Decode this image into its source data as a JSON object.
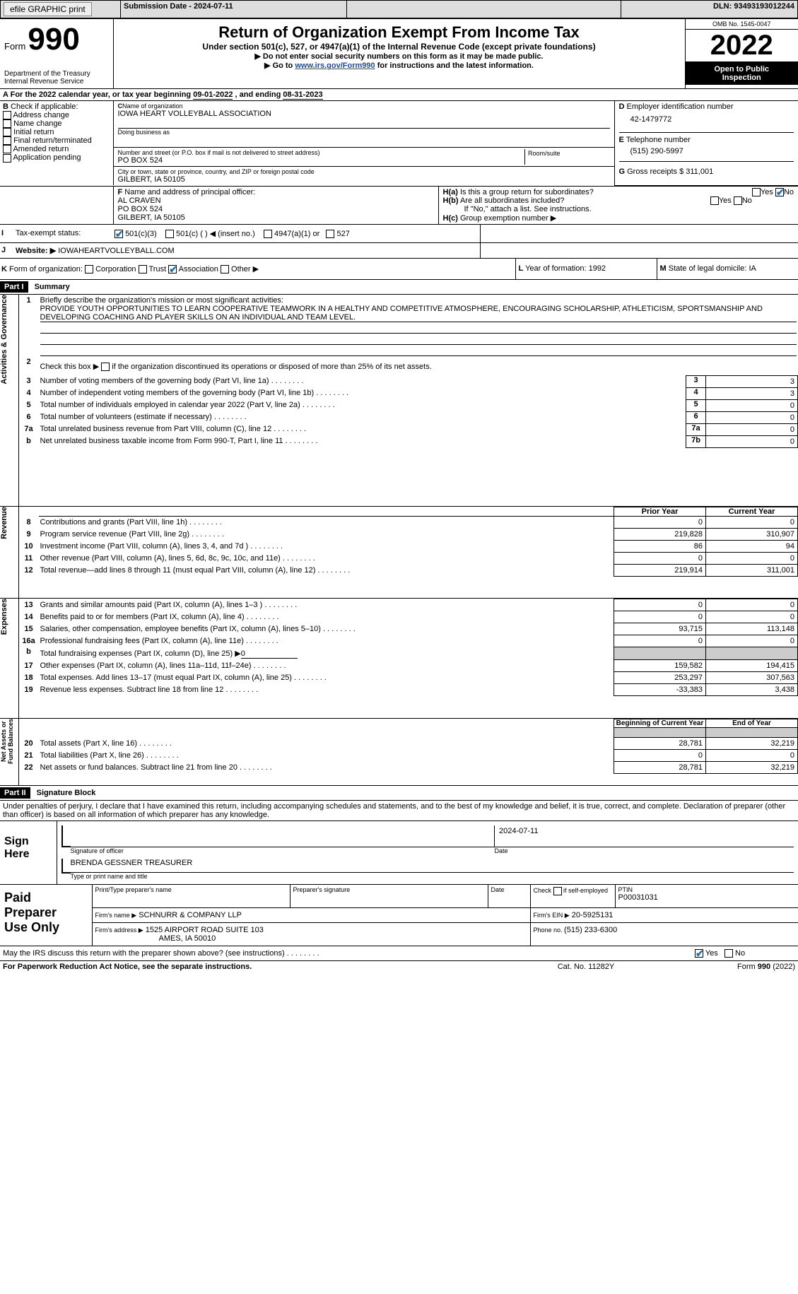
{
  "top": {
    "efile": "efile GRAPHIC print",
    "subdate_label": "Submission Date - 2024-07-11",
    "dln": "DLN: 93493193012244"
  },
  "hdr": {
    "form": "990",
    "formword": "Form",
    "title": "Return of Organization Exempt From Income Tax",
    "subtitle": "Under section 501(c), 527, or 4947(a)(1) of the Internal Revenue Code (except private foundations)",
    "note1": "Do not enter social security numbers on this form as it may be made public.",
    "note2_a": "Go to ",
    "note2_link": "www.irs.gov/Form990",
    "note2_b": " for instructions and the latest information.",
    "dept": "Department of the Treasury\nInternal Revenue Service",
    "omb": "OMB No. 1545-0047",
    "year": "2022",
    "insp": "Open to Public\nInspection"
  },
  "A": {
    "year_line_a": "For the 2022 calendar year, or tax year beginning ",
    "beg": "09-01-2022",
    "mid": " , and ending ",
    "end": "08-31-2023"
  },
  "B": {
    "hdr": " Check if applicable:",
    "addr": "Address change",
    "name": "Name change",
    "init": "Initial return",
    "final": "Final return/terminated",
    "amend": "Amended return",
    "app": "Application pending"
  },
  "C": {
    "lbl": "Name of organization",
    "org": "IOWA HEART VOLLEYBALL ASSOCIATION",
    "dba_lbl": "Doing business as",
    "street_lbl": "Number and street (or P.O. box if mail is not delivered to street address)",
    "street": "PO BOX 524",
    "room_lbl": "Room/suite",
    "city_lbl": "City or town, state or province, country, and ZIP or foreign postal code",
    "city": "GILBERT, IA  50105"
  },
  "D": {
    "lbl": " Employer identification number",
    "val": "42-1479772"
  },
  "E": {
    "lbl": " Telephone number",
    "val": "(515) 290-5997"
  },
  "G": {
    "lbl": " Gross receipts $ ",
    "val": "311,001"
  },
  "F": {
    "lbl": " Name and address of principal officer:",
    "name": "AL CRAVEN",
    "addr1": "PO BOX 524",
    "addr2": "GILBERT, IA  50105"
  },
  "H": {
    "a": " Is this a group return for subordinates?",
    "b": " Are all subordinates included?",
    "bnote": "If \"No,\" attach a list. See instructions.",
    "c": " Group exemption number ▶",
    "yes": "Yes",
    "no": "No"
  },
  "I": {
    "lbl": "Tax-exempt status:",
    "c1": "501(c)(3)",
    "c2": "501(c) (  ) ◀ (insert no.)",
    "c3": "4947(a)(1) or",
    "c4": "527"
  },
  "J": {
    "lbl": "Website: ▶",
    "val": " IOWAHEARTVOLLEYBALL.COM"
  },
  "K": {
    "lbl": " Form of organization:",
    "corp": "Corporation",
    "trust": "Trust",
    "assoc": "Association",
    "other": "Other ▶"
  },
  "L": {
    "lbl": " Year of formation: ",
    "val": "1992"
  },
  "M": {
    "lbl": " State of legal domicile: ",
    "val": "IA"
  },
  "p1": {
    "bar": "Part I",
    "title": "Summary",
    "side_act": "Activities & Governance",
    "side_rev": "Revenue",
    "side_exp": "Expenses",
    "side_net": "Net Assets or\nFund Balances",
    "l1_lbl": "Briefly describe the organization's mission or most significant activities:",
    "l1_txt": "PROVIDE YOUTH OPPORTUNITIES TO LEARN COOPERATIVE TEAMWORK IN A HEALTHY AND COMPETITIVE ATMOSPHERE, ENCOURAGING SCHOLARSHIP, ATHLETICISM, SPORTSMANSHIP AND DEVELOPING COACHING AND PLAYER SKILLS ON AN INDIVIDUAL AND TEAM LEVEL.",
    "l2": "Check this box ▶        if the organization discontinued its operations or disposed of more than 25% of its net assets.",
    "rows_a": [
      {
        "n": "3",
        "t": "Number of voting members of the governing body (Part VI, line 1a)",
        "box": "3",
        "v": "3"
      },
      {
        "n": "4",
        "t": "Number of independent voting members of the governing body (Part VI, line 1b)",
        "box": "4",
        "v": "3"
      },
      {
        "n": "5",
        "t": "Total number of individuals employed in calendar year 2022 (Part V, line 2a)",
        "box": "5",
        "v": "0"
      },
      {
        "n": "6",
        "t": "Total number of volunteers (estimate if necessary)",
        "box": "6",
        "v": "0"
      },
      {
        "n": "7a",
        "t": "Total unrelated business revenue from Part VIII, column (C), line 12",
        "box": "7a",
        "v": "0"
      },
      {
        "n": "b",
        "t": "Net unrelated business taxable income from Form 990-T, Part I, line 11",
        "box": "7b",
        "v": "0"
      }
    ],
    "pcy_hdr_p": "Prior Year",
    "pcy_hdr_c": "Current Year",
    "rows_rev": [
      {
        "n": "8",
        "t": "Contributions and grants (Part VIII, line 1h)",
        "p": "0",
        "c": "0"
      },
      {
        "n": "9",
        "t": "Program service revenue (Part VIII, line 2g)",
        "p": "219,828",
        "c": "310,907"
      },
      {
        "n": "10",
        "t": "Investment income (Part VIII, column (A), lines 3, 4, and 7d )",
        "p": "86",
        "c": "94"
      },
      {
        "n": "11",
        "t": "Other revenue (Part VIII, column (A), lines 5, 6d, 8c, 9c, 10c, and 11e)",
        "p": "0",
        "c": "0"
      },
      {
        "n": "12",
        "t": "Total revenue—add lines 8 through 11 (must equal Part VIII, column (A), line 12)",
        "p": "219,914",
        "c": "311,001"
      }
    ],
    "rows_exp": [
      {
        "n": "13",
        "t": "Grants and similar amounts paid (Part IX, column (A), lines 1–3 )",
        "p": "0",
        "c": "0"
      },
      {
        "n": "14",
        "t": "Benefits paid to or for members (Part IX, column (A), line 4)",
        "p": "0",
        "c": "0"
      },
      {
        "n": "15",
        "t": "Salaries, other compensation, employee benefits (Part IX, column (A), lines 5–10)",
        "p": "93,715",
        "c": "113,148"
      },
      {
        "n": "16a",
        "t": "Professional fundraising fees (Part IX, column (A), line 11e)",
        "p": "0",
        "c": "0"
      }
    ],
    "l16b_a": "Total fundraising expenses (Part IX, column (D), line 25) ▶",
    "l16b_v": "0",
    "rows_exp2": [
      {
        "n": "17",
        "t": "Other expenses (Part IX, column (A), lines 11a–11d, 11f–24e)",
        "p": "159,582",
        "c": "194,415"
      },
      {
        "n": "18",
        "t": "Total expenses. Add lines 13–17 (must equal Part IX, column (A), line 25)",
        "p": "253,297",
        "c": "307,563"
      },
      {
        "n": "19",
        "t": "Revenue less expenses. Subtract line 18 from line 12",
        "p": "-33,383",
        "c": "3,438"
      }
    ],
    "net_hdr_b": "Beginning of Current Year",
    "net_hdr_e": "End of Year",
    "rows_net": [
      {
        "n": "20",
        "t": "Total assets (Part X, line 16)",
        "p": "28,781",
        "c": "32,219"
      },
      {
        "n": "21",
        "t": "Total liabilities (Part X, line 26)",
        "p": "0",
        "c": "0"
      },
      {
        "n": "22",
        "t": "Net assets or fund balances. Subtract line 21 from line 20",
        "p": "28,781",
        "c": "32,219"
      }
    ]
  },
  "p2": {
    "bar": "Part II",
    "title": "Signature Block",
    "decl": "Under penalties of perjury, I declare that I have examined this return, including accompanying schedules and statements, and to the best of my knowledge and belief, it is true, correct, and complete. Declaration of preparer (other than officer) is based on all information of which preparer has any knowledge.",
    "sign_here": "Sign\nHere",
    "sig_of": "Signature of officer",
    "date_lbl": "Date",
    "date_val": "2024-07-11",
    "officer": "BRENDA GESSNER TREASURER",
    "type_name": "Type or print name and title",
    "paid": "Paid\nPreparer\nUse Only",
    "pp_name": "Print/Type preparer's name",
    "pp_sig": "Preparer's signature",
    "pp_date": "Date",
    "pp_check": "Check         if self-employed",
    "ptin_lbl": "PTIN",
    "ptin": "P00031031",
    "firm_name_lbl": "Firm's name      ▶",
    "firm_name": "SCHNURR & COMPANY LLP",
    "firm_ein_lbl": "Firm's EIN ▶",
    "firm_ein": "20-5925131",
    "firm_addr_lbl": "Firm's address ▶",
    "firm_addr1": "1525 AIRPORT ROAD SUITE 103",
    "firm_addr2": "AMES, IA  50010",
    "phone_lbl": "Phone no. ",
    "phone": "(515) 233-6300",
    "discuss": "May the IRS discuss this return with the preparer shown above? (see instructions)",
    "yes": "Yes",
    "no": "No"
  },
  "foot": {
    "pra": "For Paperwork Reduction Act Notice, see the separate instructions.",
    "cat": "Cat. No. 11282Y",
    "form": "Form 990 (2022)"
  }
}
